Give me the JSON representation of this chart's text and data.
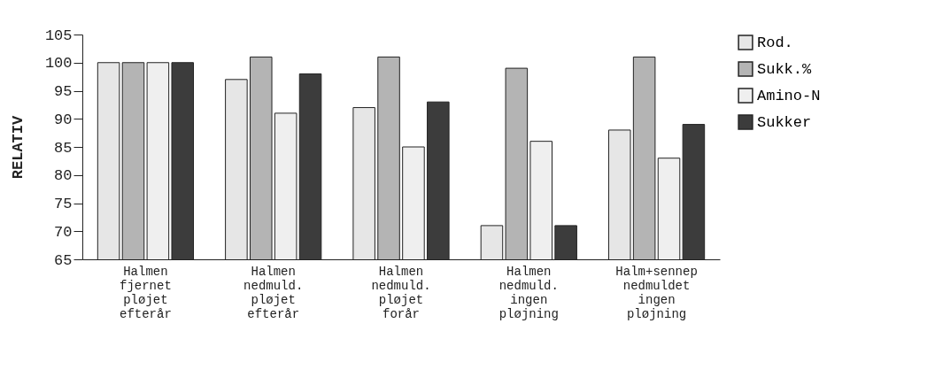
{
  "chart_data": {
    "type": "bar",
    "ylabel": "RELATIV",
    "categories": [
      "Halmen fjernet pløjet efterår",
      "Halmen nedmuld. pløjet efterår",
      "Halmen nedmuld. pløjet forår",
      "Halmen nedmuld. ingen pløjning",
      "Halm+sennep nedmuldet ingen pløjning"
    ],
    "series": [
      {
        "name": "Rod.",
        "color": "#e6e6e6",
        "values": [
          100,
          97,
          92,
          71,
          88
        ]
      },
      {
        "name": "Sukk.%",
        "color": "#b4b4b4",
        "values": [
          100,
          101,
          101,
          99,
          101
        ]
      },
      {
        "name": "Amino-N",
        "color": "#efefef",
        "values": [
          100,
          91,
          85,
          86,
          83
        ]
      },
      {
        "name": "Sukker",
        "color": "#3c3c3c",
        "values": [
          100,
          98,
          93,
          71,
          89
        ]
      }
    ],
    "ylim": [
      65,
      105
    ],
    "yticks": [
      65,
      70,
      75,
      80,
      85,
      90,
      95,
      100,
      105
    ],
    "grid": false,
    "legend": "top right"
  }
}
